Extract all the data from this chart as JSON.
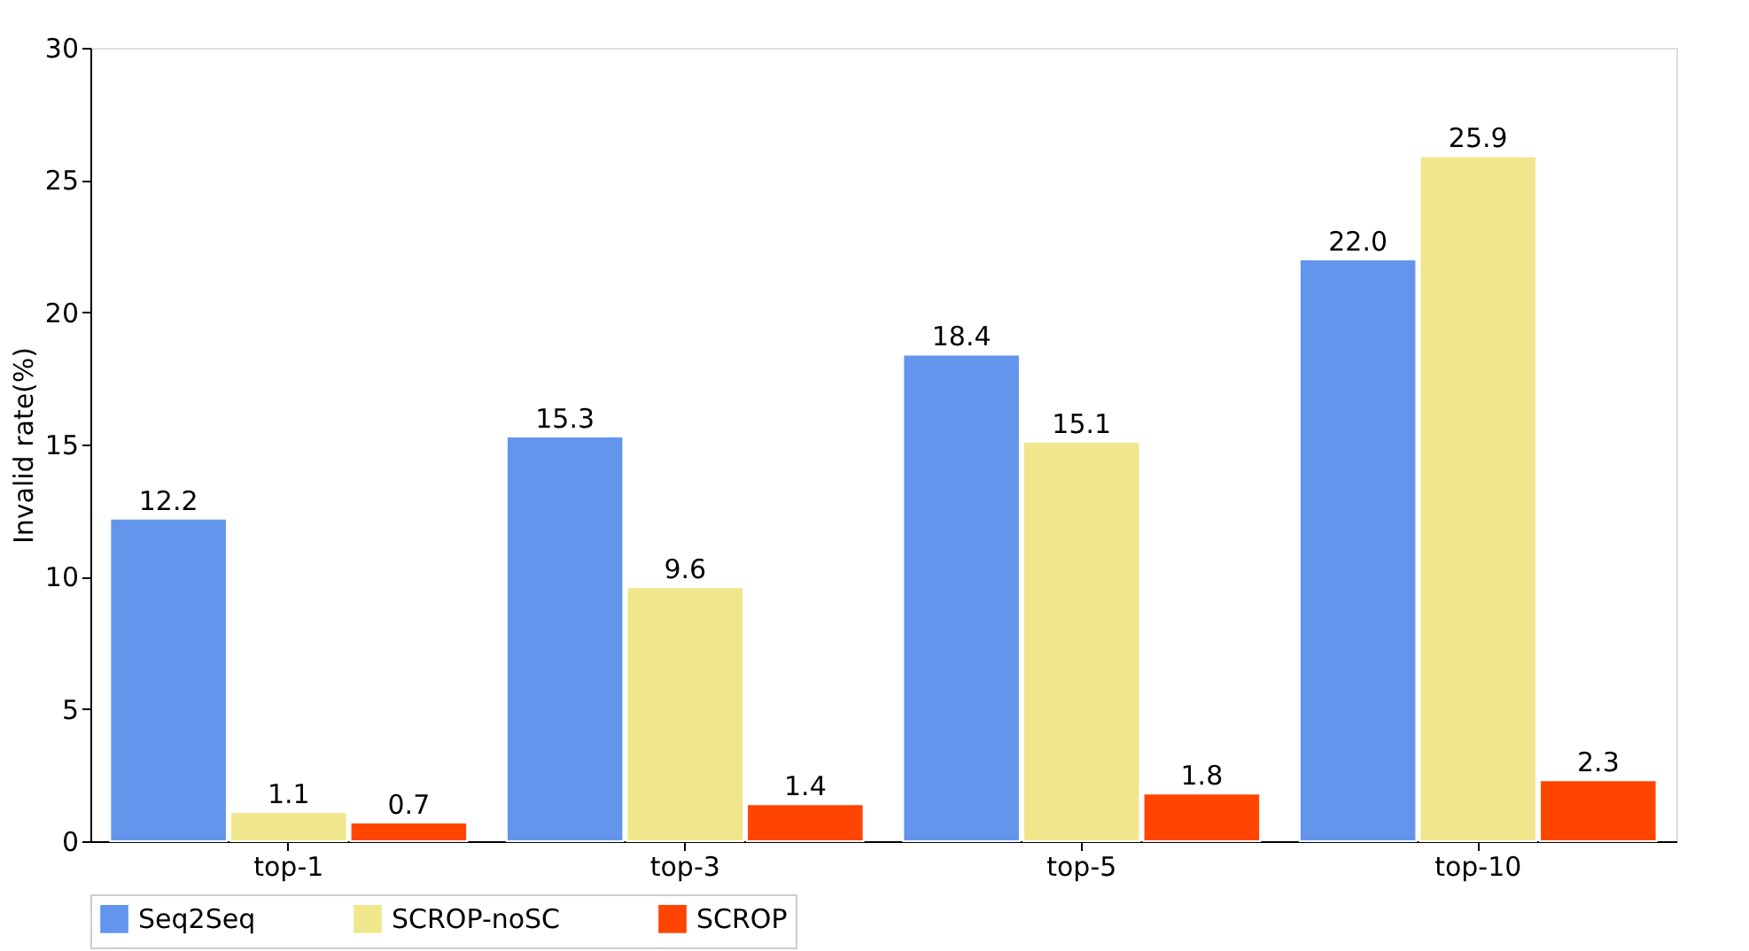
{
  "chart_data": {
    "type": "bar",
    "ylabel": "Invalid rate(%)",
    "categories": [
      "top-1",
      "top-3",
      "top-5",
      "top-10"
    ],
    "series": [
      {
        "name": "Seq2Seq",
        "color": "#6495ed",
        "values": [
          12.2,
          15.3,
          18.4,
          22.0
        ],
        "value_labels": [
          "12.2",
          "15.3",
          "18.4",
          "22.0"
        ]
      },
      {
        "name": "SCROP-noSC",
        "color": "#f0e68c",
        "values": [
          1.1,
          9.6,
          15.1,
          25.9
        ],
        "value_labels": [
          "1.1",
          "9.6",
          "15.1",
          "25.9"
        ]
      },
      {
        "name": "SCROP",
        "color": "#ff4500",
        "values": [
          0.7,
          1.4,
          1.8,
          2.3
        ],
        "value_labels": [
          "0.7",
          "1.4",
          "1.8",
          "2.3"
        ]
      }
    ],
    "ylim": [
      0,
      30
    ],
    "yticks": [
      0,
      5,
      10,
      15,
      20,
      25,
      30
    ],
    "grid": false,
    "legend": "bottom"
  }
}
